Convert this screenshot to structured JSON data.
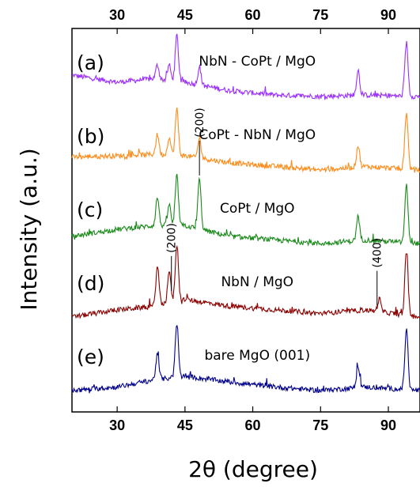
{
  "chart_data": {
    "type": "line",
    "xlabel": "2θ (degree)",
    "ylabel": "Intensity (a.u.)",
    "xlim": [
      20,
      97
    ],
    "xticks": [
      30,
      45,
      60,
      75,
      90
    ],
    "xtick_labels": [
      "30",
      "45",
      "60",
      "75",
      "90"
    ],
    "ytick_labels": [],
    "grid": false,
    "series": [
      {
        "panel": "(a)",
        "label": "NbN - CoPt / MgO",
        "color": "#9b30ff",
        "baseline": [
          [
            20,
            0.3
          ],
          [
            30,
            0.2
          ],
          [
            38,
            0.25
          ],
          [
            45,
            0.2
          ],
          [
            55,
            0.08
          ],
          [
            65,
            0.02
          ],
          [
            75,
            0.0
          ],
          [
            85,
            0.02
          ],
          [
            97,
            0.0
          ]
        ],
        "peaks": [
          [
            38.9,
            0.2
          ],
          [
            41.5,
            0.22
          ],
          [
            43.2,
            0.65
          ],
          [
            48.2,
            0.25
          ],
          [
            83.3,
            0.35
          ],
          [
            94.0,
            0.75
          ]
        ]
      },
      {
        "panel": "(b)",
        "label": "CoPt - NbN / MgO",
        "color": "#ff8c1a",
        "baseline": [
          [
            20,
            0.18
          ],
          [
            30,
            0.2
          ],
          [
            38,
            0.22
          ],
          [
            45,
            0.2
          ],
          [
            55,
            0.1
          ],
          [
            65,
            0.05
          ],
          [
            75,
            0.0
          ],
          [
            85,
            0.05
          ],
          [
            97,
            0.0
          ]
        ],
        "peaks": [
          [
            38.9,
            0.28
          ],
          [
            41.5,
            0.25
          ],
          [
            43.2,
            0.65
          ],
          [
            48.2,
            0.28
          ],
          [
            83.3,
            0.3
          ],
          [
            94.0,
            0.8
          ]
        ]
      },
      {
        "panel": "(c)",
        "label": "CoPt / MgO",
        "color": "#1a8a1a",
        "baseline": [
          [
            20,
            0.1
          ],
          [
            30,
            0.2
          ],
          [
            38,
            0.25
          ],
          [
            45,
            0.25
          ],
          [
            55,
            0.1
          ],
          [
            65,
            0.05
          ],
          [
            75,
            0.0
          ],
          [
            85,
            0.05
          ],
          [
            97,
            0.0
          ]
        ],
        "peaks": [
          [
            38.9,
            0.4
          ],
          [
            41.5,
            0.3
          ],
          [
            43.2,
            0.7
          ],
          [
            48.2,
            0.7
          ],
          [
            83.3,
            0.32
          ],
          [
            94.0,
            0.8
          ]
        ]
      },
      {
        "panel": "(d)",
        "label": "NbN / MgO",
        "color": "#8b0000",
        "baseline": [
          [
            20,
            0.0
          ],
          [
            30,
            0.1
          ],
          [
            38,
            0.15
          ],
          [
            45,
            0.25
          ],
          [
            55,
            0.15
          ],
          [
            65,
            0.1
          ],
          [
            75,
            0.05
          ],
          [
            85,
            0.1
          ],
          [
            97,
            0.0
          ]
        ],
        "peaks": [
          [
            38.9,
            0.55
          ],
          [
            41.5,
            0.45
          ],
          [
            43.2,
            0.8
          ],
          [
            88.0,
            0.18
          ],
          [
            94.0,
            0.9
          ]
        ]
      },
      {
        "panel": "(e)",
        "label": "bare MgO (001)",
        "color": "#00008b",
        "baseline": [
          [
            20,
            0.0
          ],
          [
            30,
            0.05
          ],
          [
            38,
            0.15
          ],
          [
            45,
            0.2
          ],
          [
            55,
            0.12
          ],
          [
            65,
            0.05
          ],
          [
            75,
            0.0
          ],
          [
            85,
            0.05
          ],
          [
            97,
            0.0
          ]
        ],
        "peaks": [
          [
            38.9,
            0.35
          ],
          [
            43.2,
            0.75
          ],
          [
            83.3,
            0.3
          ],
          [
            94.0,
            0.85
          ]
        ]
      }
    ],
    "annotations": [
      {
        "text": "(200)",
        "series_index": 2,
        "x": 48.2
      },
      {
        "text": "(200)",
        "series_index": 3,
        "x": 42.0
      },
      {
        "text": "(400)",
        "series_index": 3,
        "x": 87.5
      }
    ]
  }
}
